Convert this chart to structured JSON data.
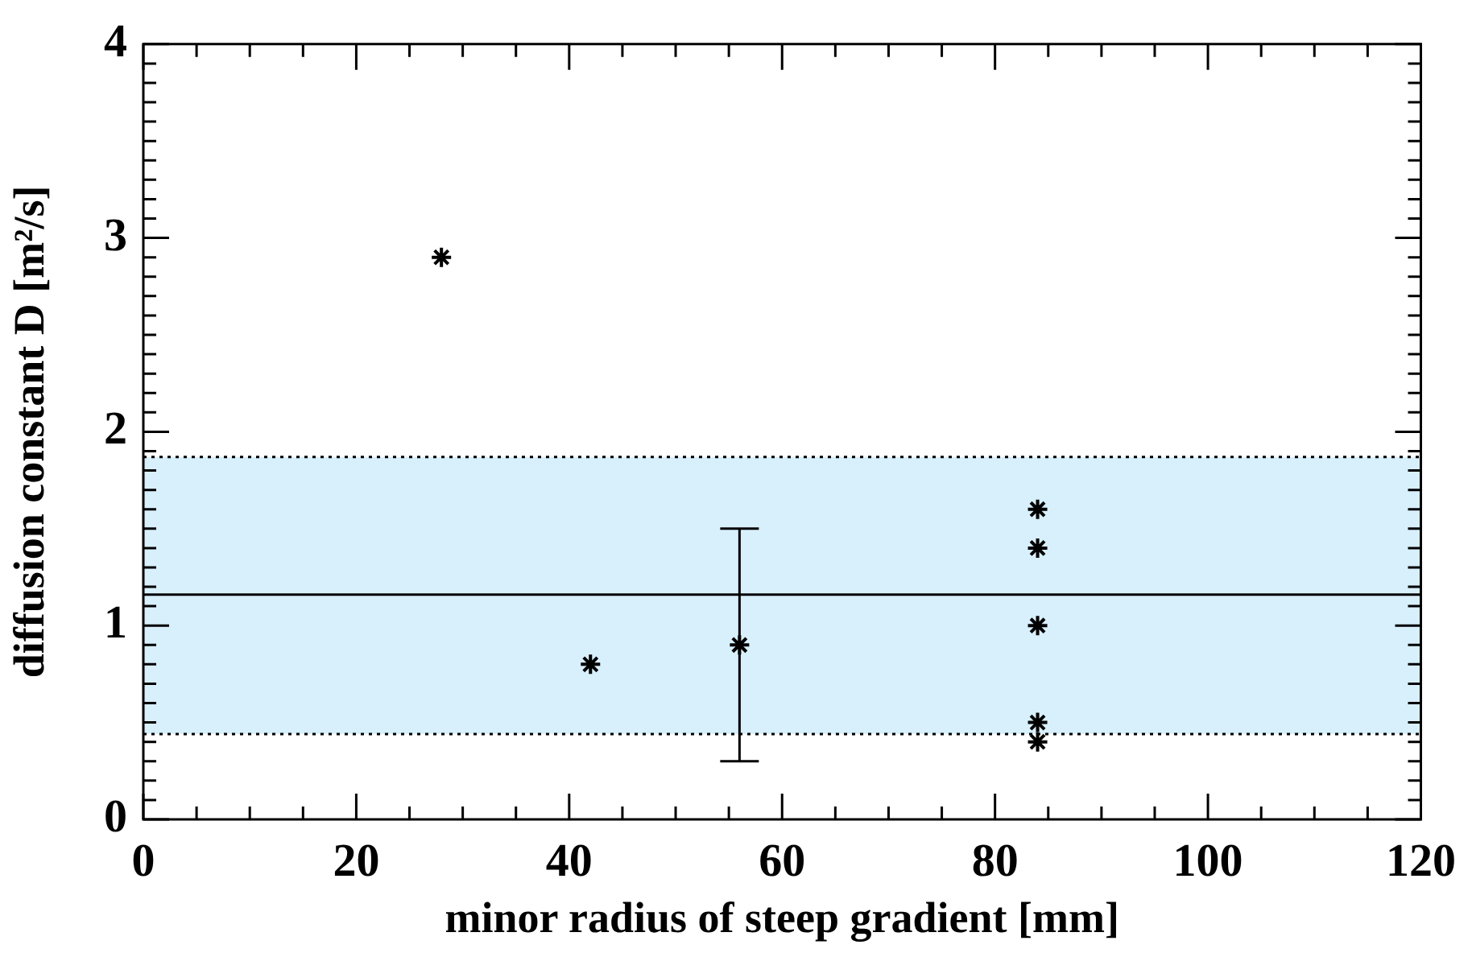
{
  "chart_data": {
    "type": "scatter",
    "xlabel": "minor radius of steep gradient [mm]",
    "ylabel": "diffusion constant D [m²/s]",
    "x": [
      28,
      42,
      56,
      84,
      84,
      84,
      84,
      84
    ],
    "values": [
      2.9,
      0.8,
      0.9,
      1.6,
      1.4,
      1.0,
      0.5,
      0.4
    ],
    "errors": [
      null,
      null,
      0.6,
      null,
      null,
      null,
      null,
      null
    ],
    "color": "#000000",
    "marker": "cross",
    "xlim": [
      0,
      120
    ],
    "xticks": [
      0,
      {
        "value": 5,
        "label": null
      },
      {
        "value": 10,
        "label": null
      },
      {
        "value": 15,
        "label": null
      },
      20,
      {
        "value": 25,
        "label": null
      },
      {
        "value": 30,
        "label": null
      },
      {
        "value": 35,
        "label": null
      },
      40,
      {
        "value": 45,
        "label": null
      },
      {
        "value": 50,
        "label": null
      },
      {
        "value": 55,
        "label": null
      },
      60,
      {
        "value": 65,
        "label": null
      },
      {
        "value": 70,
        "label": null
      },
      {
        "value": 75,
        "label": null
      },
      80,
      {
        "value": 85,
        "label": null
      },
      {
        "value": 90,
        "label": null
      },
      {
        "value": 95,
        "label": null
      },
      100,
      {
        "value": 105,
        "label": null
      },
      {
        "value": 110,
        "label": null
      },
      {
        "value": 115,
        "label": null
      },
      120
    ],
    "ylim": [
      0,
      4
    ],
    "yticks": [
      0,
      {
        "value": 0.1,
        "label": null
      },
      {
        "value": 0.2,
        "label": null
      },
      {
        "value": 0.3,
        "label": null
      },
      {
        "value": 0.4,
        "label": null
      },
      {
        "value": 0.5,
        "label": null
      },
      {
        "value": 0.6,
        "label": null
      },
      {
        "value": 0.7,
        "label": null
      },
      {
        "value": 0.8,
        "label": null
      },
      {
        "value": 0.9,
        "label": null
      },
      1,
      {
        "value": 1.1,
        "label": null
      },
      {
        "value": 1.2,
        "label": null
      },
      {
        "value": 1.3,
        "label": null
      },
      {
        "value": 1.4,
        "label": null
      },
      {
        "value": 1.5,
        "label": null
      },
      {
        "value": 1.6,
        "label": null
      },
      {
        "value": 1.7,
        "label": null
      },
      {
        "value": 1.8,
        "label": null
      },
      {
        "value": 1.9,
        "label": null
      },
      2,
      {
        "value": 2.1,
        "label": null
      },
      {
        "value": 2.2,
        "label": null
      },
      {
        "value": 2.3,
        "label": null
      },
      {
        "value": 2.4,
        "label": null
      },
      {
        "value": 2.5,
        "label": null
      },
      {
        "value": 2.6,
        "label": null
      },
      {
        "value": 2.7,
        "label": null
      },
      {
        "value": 2.8,
        "label": null
      },
      {
        "value": 2.9,
        "label": null
      },
      3,
      {
        "value": 3.1,
        "label": null
      },
      {
        "value": 3.2,
        "label": null
      },
      {
        "value": 3.3,
        "label": null
      },
      {
        "value": 3.4,
        "label": null
      },
      {
        "value": 3.5,
        "label": null
      },
      {
        "value": 3.6,
        "label": null
      },
      {
        "value": 3.7,
        "label": null
      },
      {
        "value": 3.8,
        "label": null
      },
      {
        "value": 3.9,
        "label": null
      },
      4
    ],
    "ref_lines": [
      {
        "axis": "y",
        "value": 1.16,
        "color": "#000000",
        "line_style": "solid"
      },
      {
        "axis": "y",
        "value": 0.44,
        "color": "#000000",
        "line_style": "dotted"
      },
      {
        "axis": "y",
        "value": 1.87,
        "color": "#000000",
        "line_style": "dotted"
      }
    ],
    "bands": [
      {
        "axis": "y",
        "from": 0.44,
        "to": 1.87,
        "color": "#d8effc"
      }
    ],
    "grid": false,
    "legend": false
  }
}
